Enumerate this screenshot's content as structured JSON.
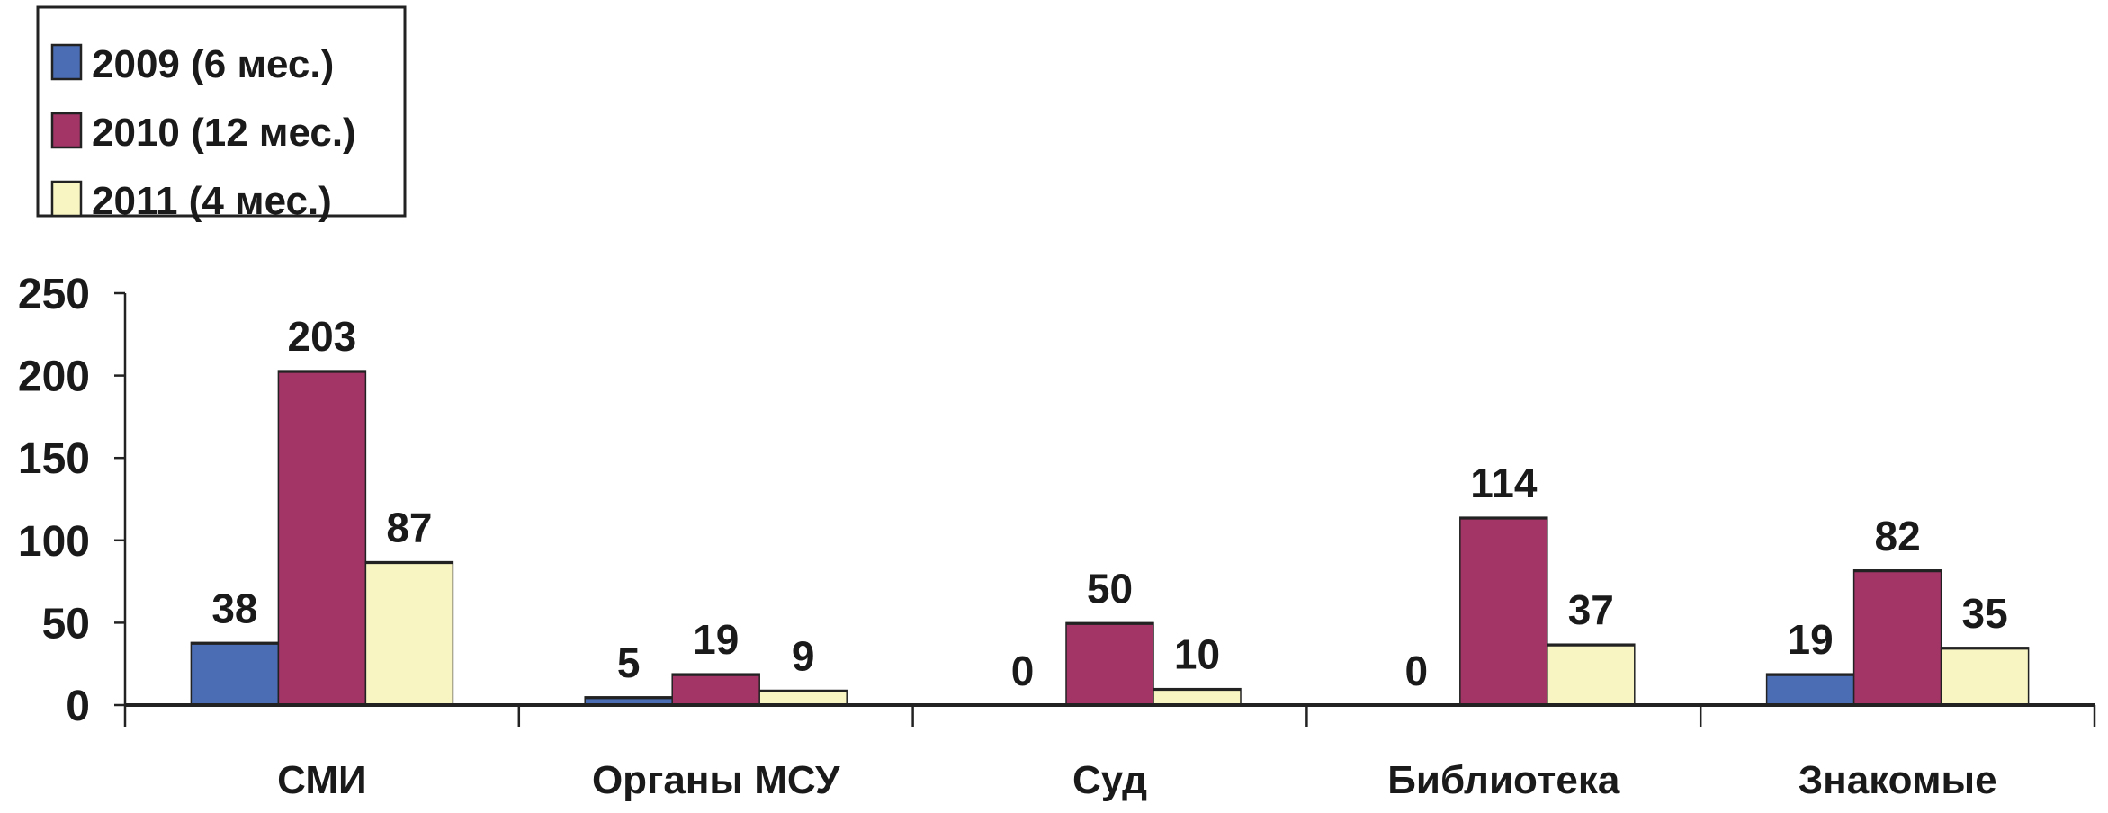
{
  "chart_data": {
    "type": "bar",
    "title": "",
    "xlabel": "",
    "ylabel": "",
    "categories": [
      "СМИ",
      "Органы МСУ",
      "Суд",
      "Библиотека",
      "Знакомые"
    ],
    "series": [
      {
        "name": "2009 (6 мес.)",
        "color": "#4a6db3",
        "values": [
          38,
          5,
          0,
          0,
          19
        ]
      },
      {
        "name": "2010 (12 мес.)",
        "color": "#a23466",
        "values": [
          203,
          19,
          50,
          114,
          82
        ]
      },
      {
        "name": "2011 (4 мес.)",
        "color": "#f8f5c3",
        "values": [
          87,
          9,
          10,
          37,
          35
        ]
      }
    ],
    "ylim": [
      0,
      250
    ],
    "yticks": [
      0,
      50,
      100,
      150,
      200,
      250
    ],
    "grid": false,
    "legend": "top-left",
    "data_labels": true
  }
}
